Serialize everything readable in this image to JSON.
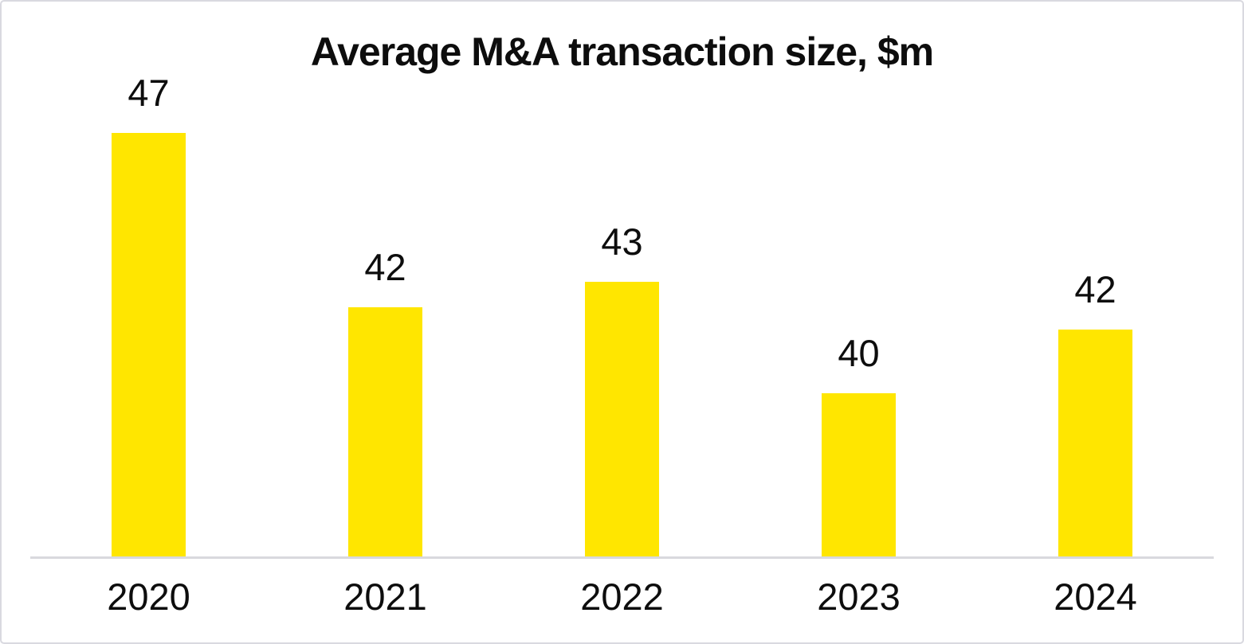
{
  "window": {
    "background": "#ffffff",
    "border_color": "#d9d9e0"
  },
  "chart_data": {
    "type": "bar",
    "title": "Average M&A transaction size, $m",
    "categories": [
      "2020",
      "2021",
      "2022",
      "2023",
      "2024"
    ],
    "values": [
      47,
      42,
      43,
      40,
      42
    ],
    "values_precise_estimate": [
      47.0,
      42.3,
      43.0,
      40.0,
      41.7
    ],
    "xlabel": "",
    "ylabel": "",
    "ylim": [
      35.6,
      47.0
    ],
    "bar_color": "#ffe600",
    "axis_line_color": "#d9d9de",
    "text_color": "#0d0d0d",
    "gridlines": false,
    "y_axis_visible": false,
    "legend_position": "none",
    "data_labels_shown": true
  }
}
